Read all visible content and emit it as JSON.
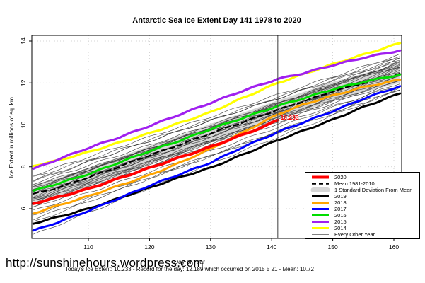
{
  "title": "Antarctic Sea Ice Extent Day 141 1978 to 2020",
  "footer": {
    "url": "http://sunshinehours.wordpress.com",
    "stats": "Today's Ice Extent: 10.233  - Record for the day: 12.189 which occurred on 2015 5 21  - Mean: 10.72"
  },
  "annotation": {
    "text": "10.233",
    "day": 141.2,
    "value": 10.35,
    "color": "#ff0000"
  },
  "chart_data": {
    "type": "line",
    "title": "Antarctic Sea Ice Extent Day 141 1978 to 2020",
    "xlabel": "Day of Year",
    "ylabel": "Ice Extent in millions of sq. km.",
    "xlim": [
      100.7,
      161.3
    ],
    "ylim": [
      4.57,
      14.27
    ],
    "xticks": [
      110,
      120,
      130,
      140,
      150,
      160
    ],
    "yticks": [
      6,
      8,
      10,
      12,
      14
    ],
    "grid": "dotted",
    "grid_color": "#c9c9c9",
    "vline_day": 141,
    "band": {
      "name": "1 Standard Deviation From Mean",
      "color": "#d6d6d6",
      "offset": 0.45,
      "around": "Mean 1981-2010"
    },
    "series": [
      {
        "name": "Mean 1981-2010",
        "color": "#000000",
        "width": 2.2,
        "dash": "7 5",
        "days": [
          101,
          105,
          110,
          115,
          120,
          125,
          130,
          135,
          141,
          145,
          150,
          155,
          161
        ],
        "values": [
          6.7,
          7.0,
          7.5,
          8.0,
          8.55,
          9.05,
          9.6,
          10.1,
          10.72,
          11.1,
          11.6,
          12.0,
          12.45
        ]
      },
      {
        "name": "2019",
        "color": "#000000",
        "width": 3,
        "dash": null,
        "days": [
          101,
          105,
          110,
          115,
          120,
          125,
          130,
          135,
          141,
          145,
          150,
          155,
          161
        ],
        "values": [
          5.3,
          5.6,
          6.0,
          6.5,
          7.0,
          7.5,
          7.95,
          8.55,
          9.27,
          9.7,
          10.25,
          10.85,
          11.5
        ]
      },
      {
        "name": "2017",
        "color": "#0000ff",
        "width": 3,
        "dash": null,
        "days": [
          101,
          105,
          110,
          115,
          120,
          125,
          130,
          135,
          141,
          145,
          150,
          155,
          161
        ],
        "values": [
          4.95,
          5.35,
          5.9,
          6.5,
          7.1,
          7.65,
          8.2,
          8.9,
          9.65,
          10.1,
          10.65,
          11.25,
          11.85
        ]
      },
      {
        "name": "2018",
        "color": "#ffa500",
        "width": 3,
        "dash": null,
        "days": [
          101,
          105,
          110,
          115,
          120,
          125,
          130,
          135,
          141,
          145,
          150,
          155,
          161
        ],
        "values": [
          5.78,
          6.15,
          6.6,
          7.1,
          7.6,
          8.2,
          8.85,
          9.6,
          10.5,
          10.95,
          11.4,
          11.8,
          12.15
        ]
      },
      {
        "name": "2016",
        "color": "#00dd00",
        "width": 3,
        "dash": null,
        "days": [
          101,
          105,
          110,
          115,
          120,
          125,
          130,
          135,
          141,
          145,
          150,
          155,
          161
        ],
        "values": [
          6.85,
          7.2,
          7.65,
          8.2,
          8.75,
          9.25,
          9.8,
          10.3,
          10.9,
          11.25,
          11.7,
          12.05,
          12.4
        ]
      },
      {
        "name": "2014",
        "color": "#ffff00",
        "width": 3.2,
        "dash": null,
        "days": [
          101,
          105,
          110,
          115,
          120,
          125,
          130,
          135,
          141,
          145,
          150,
          155,
          161
        ],
        "values": [
          8.05,
          8.3,
          8.7,
          9.15,
          9.6,
          10.1,
          10.6,
          11.25,
          12.0,
          12.4,
          12.9,
          13.35,
          13.9
        ]
      },
      {
        "name": "2015",
        "color": "#a020f0",
        "width": 3.2,
        "dash": null,
        "days": [
          101,
          105,
          110,
          115,
          120,
          125,
          130,
          135,
          141,
          145,
          150,
          155,
          161
        ],
        "values": [
          7.9,
          8.35,
          8.9,
          9.4,
          9.95,
          10.5,
          11.05,
          11.6,
          12.19,
          12.45,
          12.85,
          13.2,
          13.55
        ]
      },
      {
        "name": "2020",
        "color": "#ff0000",
        "width": 4,
        "dash": null,
        "days": [
          101,
          105,
          110,
          115,
          120,
          125,
          130,
          135,
          139,
          141
        ],
        "values": [
          6.25,
          6.55,
          6.95,
          7.45,
          7.95,
          8.45,
          8.95,
          9.5,
          9.95,
          10.233
        ]
      }
    ],
    "other_years": {
      "name": "Every Other Year",
      "color": "#3a3a3a",
      "width": 0.6,
      "span_days": [
        101,
        161
      ],
      "start_end_values": [
        [
          6.5,
          12.6
        ],
        [
          6.3,
          12.3
        ],
        [
          6.7,
          12.8
        ],
        [
          6.9,
          12.9
        ],
        [
          7.1,
          13.0
        ],
        [
          7.3,
          13.1
        ],
        [
          7.5,
          13.3
        ],
        [
          7.6,
          13.35
        ],
        [
          6.1,
          12.1
        ],
        [
          5.9,
          12.0
        ],
        [
          6.4,
          12.45
        ],
        [
          6.6,
          12.7
        ],
        [
          6.8,
          12.55
        ],
        [
          7.0,
          12.85
        ],
        [
          7.2,
          12.95
        ],
        [
          6.2,
          12.2
        ],
        [
          6.35,
          12.5
        ],
        [
          6.55,
          12.65
        ],
        [
          6.75,
          12.75
        ],
        [
          6.05,
          11.9
        ],
        [
          5.7,
          11.75
        ],
        [
          5.5,
          11.65
        ],
        [
          4.75,
          11.7
        ],
        [
          6.45,
          12.4
        ],
        [
          6.85,
          12.9
        ],
        [
          7.05,
          13.05
        ],
        [
          6.15,
          12.15
        ],
        [
          6.95,
          13.15
        ],
        [
          7.35,
          13.2
        ],
        [
          5.35,
          11.85
        ]
      ]
    },
    "legend": {
      "position": "inside-right-middle",
      "entries": [
        {
          "label": "2020",
          "color": "#ff0000",
          "style": "solid",
          "width": 4
        },
        {
          "label": "Mean 1981-2010",
          "color": "#000000",
          "style": "dashed",
          "width": 2.5
        },
        {
          "label": "1 Standard Deviation From Mean",
          "color": "#d6d6d6",
          "style": "band",
          "width": 7
        },
        {
          "label": "2019",
          "color": "#000000",
          "style": "solid",
          "width": 3
        },
        {
          "label": "2018",
          "color": "#ffa500",
          "style": "solid",
          "width": 3
        },
        {
          "label": "2017",
          "color": "#0000ff",
          "style": "solid",
          "width": 3
        },
        {
          "label": "2016",
          "color": "#00dd00",
          "style": "solid",
          "width": 3
        },
        {
          "label": "2015",
          "color": "#a020f0",
          "style": "solid",
          "width": 3
        },
        {
          "label": "2014",
          "color": "#ffff00",
          "style": "solid",
          "width": 3
        },
        {
          "label": "Every Other Year",
          "color": "#808080",
          "style": "solid",
          "width": 1
        }
      ]
    }
  }
}
